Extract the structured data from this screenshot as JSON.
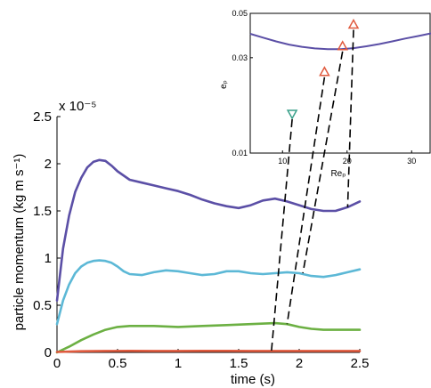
{
  "chart_data": [
    {
      "type": "line",
      "title": "",
      "xlabel": "time (s)",
      "ylabel": "particle momentum (kg m s⁻¹)",
      "y_multiplier_label": "x 10⁻⁵",
      "xlim": [
        0,
        2.5
      ],
      "ylim": [
        0,
        2.5
      ],
      "x_ticks": [
        0,
        0.5,
        1,
        1.5,
        2,
        2.5
      ],
      "x_tick_labels": [
        "0",
        "0.5",
        "1",
        "1.5",
        "2",
        "2.5"
      ],
      "y_ticks": [
        0,
        0.5,
        1,
        1.5,
        2,
        2.5
      ],
      "y_tick_labels": [
        "0",
        "0.5",
        "1",
        "1.5",
        "2",
        "2.5"
      ],
      "grid": false,
      "series": [
        {
          "color": "#5b4fa6",
          "x": [
            0,
            0.05,
            0.1,
            0.15,
            0.2,
            0.25,
            0.3,
            0.35,
            0.4,
            0.45,
            0.5,
            0.6,
            0.7,
            0.8,
            0.9,
            1.0,
            1.1,
            1.2,
            1.3,
            1.4,
            1.5,
            1.6,
            1.7,
            1.8,
            1.9,
            2.0,
            2.1,
            2.2,
            2.3,
            2.4,
            2.5
          ],
          "values": [
            0.55,
            1.1,
            1.45,
            1.7,
            1.85,
            1.96,
            2.02,
            2.04,
            2.03,
            1.98,
            1.92,
            1.83,
            1.8,
            1.77,
            1.74,
            1.71,
            1.67,
            1.62,
            1.58,
            1.55,
            1.53,
            1.56,
            1.61,
            1.63,
            1.6,
            1.56,
            1.52,
            1.5,
            1.5,
            1.54,
            1.6
          ]
        },
        {
          "color": "#5cb8d6",
          "x": [
            0,
            0.05,
            0.1,
            0.15,
            0.2,
            0.25,
            0.3,
            0.35,
            0.4,
            0.45,
            0.5,
            0.55,
            0.6,
            0.7,
            0.8,
            0.9,
            1.0,
            1.1,
            1.2,
            1.3,
            1.4,
            1.5,
            1.6,
            1.7,
            1.8,
            1.9,
            2.0,
            2.1,
            2.2,
            2.3,
            2.4,
            2.5
          ],
          "values": [
            0.3,
            0.55,
            0.72,
            0.84,
            0.91,
            0.95,
            0.97,
            0.975,
            0.97,
            0.95,
            0.91,
            0.86,
            0.83,
            0.82,
            0.85,
            0.87,
            0.86,
            0.84,
            0.82,
            0.83,
            0.86,
            0.86,
            0.84,
            0.83,
            0.84,
            0.85,
            0.84,
            0.81,
            0.8,
            0.82,
            0.85,
            0.88
          ]
        },
        {
          "color": "#6cb043",
          "x": [
            0,
            0.1,
            0.2,
            0.3,
            0.4,
            0.5,
            0.6,
            0.8,
            1.0,
            1.2,
            1.4,
            1.6,
            1.8,
            1.9,
            2.0,
            2.1,
            2.2,
            2.3,
            2.4,
            2.5
          ],
          "values": [
            0.0,
            0.06,
            0.13,
            0.19,
            0.24,
            0.27,
            0.28,
            0.28,
            0.27,
            0.28,
            0.29,
            0.3,
            0.31,
            0.3,
            0.27,
            0.25,
            0.24,
            0.24,
            0.24,
            0.24
          ]
        },
        {
          "color": "#e05a3e",
          "x": [
            0,
            0.2,
            0.4,
            0.6,
            0.8,
            1.0,
            1.2,
            1.4,
            1.6,
            1.8,
            2.0,
            2.2,
            2.4,
            2.5
          ],
          "values": [
            0.005,
            0.012,
            0.015,
            0.016,
            0.015,
            0.015,
            0.016,
            0.016,
            0.015,
            0.015,
            0.015,
            0.015,
            0.015,
            0.015
          ]
        }
      ]
    },
    {
      "type": "line+scatter",
      "title": "",
      "xlabel": "Reₚ",
      "ylabel": "eₚ",
      "xlim": [
        5,
        33
      ],
      "ylim": [
        0.01,
        0.05
      ],
      "yscale": "log",
      "x_ticks": [
        10,
        20,
        30
      ],
      "x_tick_labels": [
        "10",
        "20",
        "30"
      ],
      "y_ticks": [
        0.01,
        0.03,
        0.05
      ],
      "y_tick_labels": [
        "0.01",
        "0.03",
        "0.05"
      ],
      "grid": false,
      "curve": {
        "color": "#5b4fa6",
        "x": [
          5,
          7,
          9,
          11,
          13,
          15,
          17,
          19,
          21,
          23,
          25,
          27,
          29,
          31,
          33
        ],
        "values": [
          0.0395,
          0.0378,
          0.0362,
          0.0349,
          0.034,
          0.0334,
          0.0331,
          0.0331,
          0.0335,
          0.0342,
          0.0351,
          0.0362,
          0.0374,
          0.0385,
          0.0397
        ]
      },
      "markers": [
        {
          "x": 11.5,
          "y": 0.0157,
          "shape": "triangle-down",
          "color": "#3aa08a"
        },
        {
          "x": 16.5,
          "y": 0.0255,
          "shape": "triangle-up",
          "color": "#e05a3e"
        },
        {
          "x": 19.3,
          "y": 0.0343,
          "shape": "triangle-up",
          "color": "#e05a3e"
        },
        {
          "x": 21.0,
          "y": 0.044,
          "shape": "triangle-up",
          "color": "#e05a3e"
        }
      ]
    }
  ]
}
